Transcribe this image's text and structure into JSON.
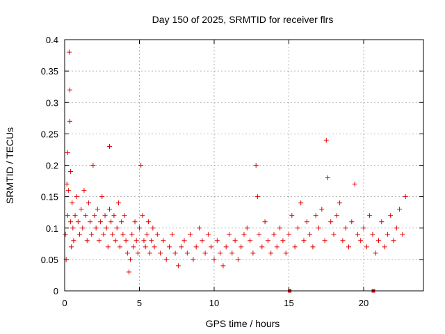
{
  "chart_data": {
    "type": "scatter",
    "title": "Day 150 of 2025, SRMTID for receiver flrs",
    "xlabel": "GPS time / hours",
    "ylabel": "SRMTID / TECUs",
    "xlim": [
      0,
      24
    ],
    "ylim": [
      0,
      0.4
    ],
    "xticks": [
      0,
      5,
      10,
      15,
      20
    ],
    "xtick_labels": [
      "0",
      "5",
      "10",
      "15",
      "20"
    ],
    "yticks": [
      0,
      0.05,
      0.1,
      0.15,
      0.2,
      0.25,
      0.3,
      0.35,
      0.4
    ],
    "ytick_labels": [
      "0",
      "0.05",
      "0.1",
      "0.15",
      "0.2",
      "0.25",
      "0.3",
      "0.35",
      "0.4"
    ],
    "grid": true,
    "marker": "plus",
    "color": "#e00000",
    "series": [
      {
        "name": "SRMTID",
        "x": [
          0.05,
          0.1,
          0.15,
          0.2,
          0.2,
          0.25,
          0.3,
          0.35,
          0.35,
          0.4,
          0.4,
          0.45,
          0.5,
          0.55,
          0.6,
          0.7,
          0.8,
          0.9,
          1.0,
          1.1,
          1.2,
          1.3,
          1.4,
          1.5,
          1.6,
          1.7,
          1.8,
          1.9,
          2.0,
          2.1,
          2.2,
          2.3,
          2.4,
          2.5,
          2.6,
          2.7,
          2.8,
          2.9,
          3.0,
          3.0,
          3.1,
          3.2,
          3.3,
          3.4,
          3.5,
          3.6,
          3.7,
          3.8,
          3.9,
          4.0,
          4.1,
          4.2,
          4.3,
          4.4,
          4.5,
          4.6,
          4.7,
          4.8,
          4.9,
          5.0,
          5.1,
          5.2,
          5.3,
          5.4,
          5.5,
          5.6,
          5.7,
          5.8,
          5.9,
          6.0,
          6.2,
          6.4,
          6.6,
          6.8,
          7.0,
          7.2,
          7.4,
          7.6,
          7.8,
          8.0,
          8.2,
          8.4,
          8.6,
          8.8,
          9.0,
          9.2,
          9.4,
          9.6,
          9.8,
          10.0,
          10.2,
          10.4,
          10.6,
          10.8,
          11.0,
          11.2,
          11.4,
          11.6,
          11.8,
          12.0,
          12.2,
          12.4,
          12.6,
          12.8,
          12.9,
          13.0,
          13.2,
          13.4,
          13.6,
          13.8,
          14.0,
          14.2,
          14.4,
          14.6,
          14.8,
          15.0,
          15.2,
          15.4,
          15.6,
          15.8,
          16.0,
          16.2,
          16.4,
          16.6,
          16.8,
          17.0,
          17.2,
          17.4,
          17.5,
          17.6,
          17.8,
          18.0,
          18.2,
          18.4,
          18.6,
          18.8,
          19.0,
          19.2,
          19.4,
          19.6,
          19.8,
          20.0,
          20.2,
          20.4,
          20.6,
          20.8,
          21.0,
          21.2,
          21.4,
          21.6,
          21.8,
          22.0,
          22.2,
          22.4,
          22.6,
          22.8
        ],
        "y": [
          0.09,
          0.05,
          0.17,
          0.22,
          0.12,
          0.16,
          0.38,
          0.32,
          0.27,
          0.11,
          0.19,
          0.07,
          0.14,
          0.1,
          0.08,
          0.12,
          0.15,
          0.11,
          0.09,
          0.13,
          0.1,
          0.16,
          0.12,
          0.08,
          0.14,
          0.11,
          0.09,
          0.2,
          0.12,
          0.1,
          0.13,
          0.08,
          0.11,
          0.15,
          0.09,
          0.12,
          0.1,
          0.07,
          0.23,
          0.13,
          0.11,
          0.09,
          0.12,
          0.08,
          0.1,
          0.14,
          0.07,
          0.11,
          0.09,
          0.12,
          0.08,
          0.06,
          0.03,
          0.05,
          0.09,
          0.07,
          0.11,
          0.08,
          0.06,
          0.1,
          0.2,
          0.12,
          0.08,
          0.07,
          0.09,
          0.11,
          0.06,
          0.08,
          0.1,
          0.07,
          0.09,
          0.06,
          0.08,
          0.05,
          0.07,
          0.09,
          0.06,
          0.04,
          0.07,
          0.08,
          0.06,
          0.09,
          0.05,
          0.07,
          0.1,
          0.08,
          0.06,
          0.09,
          0.07,
          0.05,
          0.08,
          0.06,
          0.04,
          0.07,
          0.09,
          0.06,
          0.08,
          0.05,
          0.07,
          0.09,
          0.1,
          0.08,
          0.06,
          0.2,
          0.15,
          0.09,
          0.07,
          0.11,
          0.08,
          0.06,
          0.09,
          0.07,
          0.1,
          0.08,
          0.06,
          0.09,
          0.12,
          0.07,
          0.1,
          0.14,
          0.08,
          0.11,
          0.09,
          0.07,
          0.12,
          0.1,
          0.13,
          0.08,
          0.24,
          0.18,
          0.11,
          0.09,
          0.12,
          0.14,
          0.08,
          0.1,
          0.07,
          0.11,
          0.17,
          0.09,
          0.08,
          0.1,
          0.07,
          0.12,
          0.09,
          0.06,
          0.08,
          0.11,
          0.07,
          0.09,
          0.12,
          0.08,
          0.1,
          0.13,
          0.09,
          0.15
        ]
      }
    ],
    "markers_at_zero": [
      15.05,
      20.65
    ]
  }
}
